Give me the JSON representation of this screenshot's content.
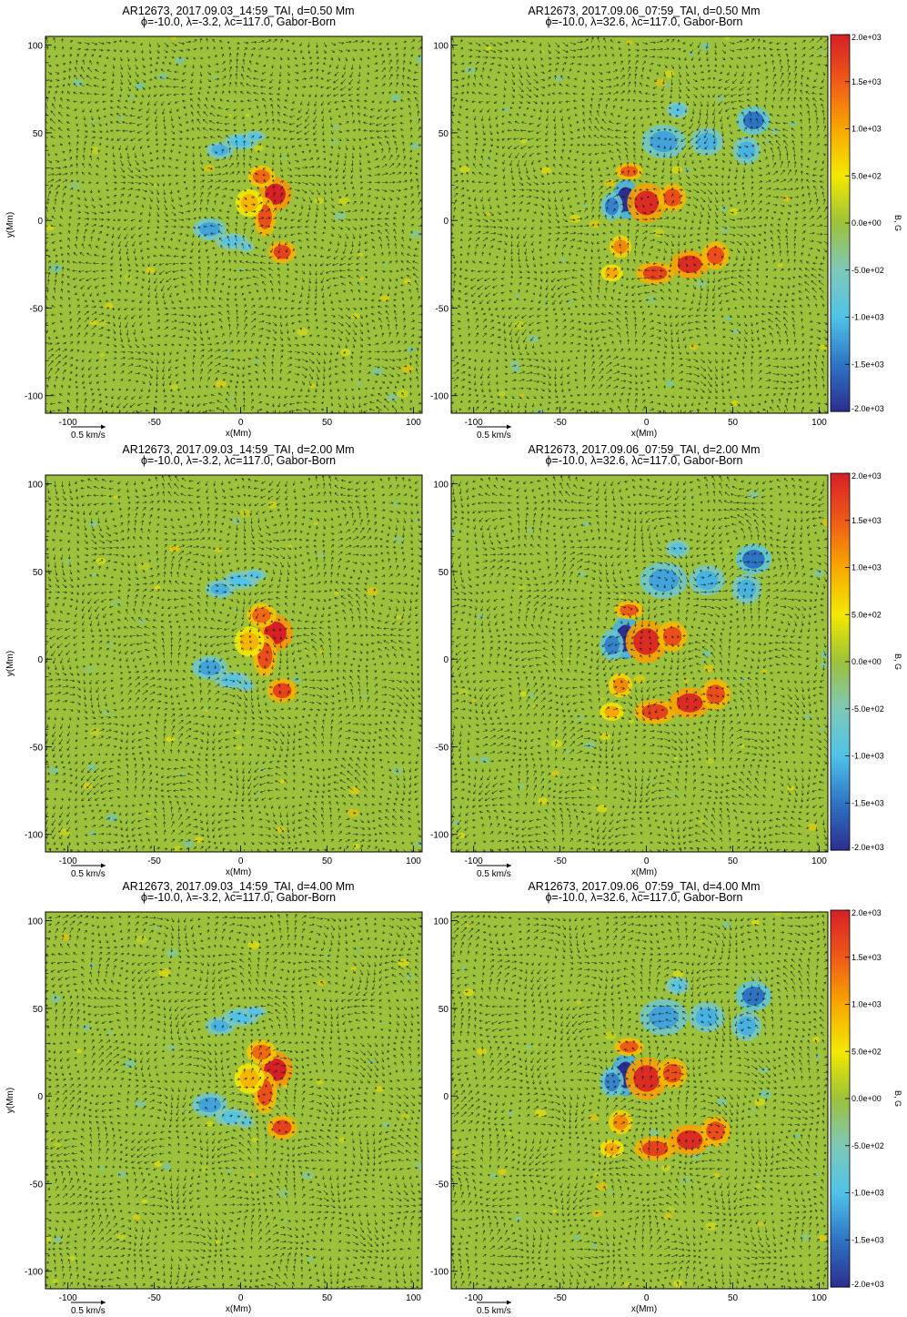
{
  "chart_data": {
    "type": "heatmap",
    "description_units": {
      "x": "Mm",
      "y": "Mm",
      "color": "G",
      "arrows": "km/s"
    },
    "xlim": [
      -113,
      105
    ],
    "ylim": [
      -110,
      105
    ],
    "xticks": [
      -100,
      -50,
      0,
      50,
      100
    ],
    "yticks": [
      -100,
      -50,
      0,
      50,
      100
    ],
    "x_tick_labels": [
      "-100",
      "-50",
      "0",
      "50",
      "100"
    ],
    "y_tick_labels": [
      "-100",
      "-50",
      "0",
      "50",
      "100"
    ],
    "xlabel": "x(Mm)",
    "ylabel": "y(Mm)",
    "vector_scale_label": "0.5 km/s",
    "colorbar": {
      "label": "B, G",
      "range": [
        -2000,
        2000
      ],
      "tick_values": [
        2000,
        1500,
        1000,
        500,
        0,
        -500,
        -1000,
        -1500,
        -2000
      ],
      "tick_labels": [
        "2.0e+03",
        "1.5e+03",
        "1.0e+03",
        "5.0e+02",
        "0.0e+00",
        "-5.0e+02",
        "-1.0e+03",
        "-1.5e+03",
        "-2.0e+03"
      ],
      "colors": [
        "#2b2f8f",
        "#2e74c4",
        "#4fc3e8",
        "#7fc8b8",
        "#9bc23a",
        "#f4e800",
        "#f7a800",
        "#ee5a18",
        "#d62026"
      ]
    },
    "grid": false,
    "panels": [
      {
        "title1": "AR12673, 2017.09.03_14:59_TAI, d=0.50 Mm",
        "title2": "ϕ=-10.0, λ=-3.2, λc=117.0, Gabor-Born",
        "date": "2017.09.03",
        "depth_Mm": 0.5,
        "lambda": -3.2
      },
      {
        "title1": "AR12673, 2017.09.06_07:59_TAI, d=0.50 Mm",
        "title2": "ϕ=-10.0, λ=32.6, λc=117.0, Gabor-Born",
        "date": "2017.09.06",
        "depth_Mm": 0.5,
        "lambda": 32.6
      },
      {
        "title1": "AR12673, 2017.09.03_14:59_TAI, d=2.00 Mm",
        "title2": "ϕ=-10.0, λ=-3.2, λc=117.0, Gabor-Born",
        "date": "2017.09.03",
        "depth_Mm": 2.0,
        "lambda": -3.2
      },
      {
        "title1": "AR12673, 2017.09.06_07:59_TAI, d=2.00 Mm",
        "title2": "ϕ=-10.0, λ=32.6, λc=117.0, Gabor-Born",
        "date": "2017.09.06",
        "depth_Mm": 2.0,
        "lambda": 32.6
      },
      {
        "title1": "AR12673, 2017.09.03_14:59_TAI, d=4.00 Mm",
        "title2": "ϕ=-10.0, λ=-3.2, λc=117.0, Gabor-Born",
        "date": "2017.09.03",
        "depth_Mm": 4.0,
        "lambda": -3.2
      },
      {
        "title1": "AR12673, 2017.09.06_07:59_TAI, d=4.00 Mm",
        "title2": "ϕ=-10.0, λ=32.6, λc=117.0, Gabor-Born",
        "date": "2017.09.06",
        "depth_Mm": 4.0,
        "lambda": 32.6
      }
    ],
    "magnetic_features": {
      "2017.09.03": [
        {
          "x": 20,
          "y": 15,
          "B": 2000,
          "rx": 6,
          "ry": 6
        },
        {
          "x": 12,
          "y": 25,
          "B": 1400,
          "rx": 5,
          "ry": 4
        },
        {
          "x": 14,
          "y": 2,
          "B": 1600,
          "rx": 4,
          "ry": 7
        },
        {
          "x": 24,
          "y": -18,
          "B": 1700,
          "rx": 5,
          "ry": 4
        },
        {
          "x": 5,
          "y": 10,
          "B": 900,
          "rx": 5,
          "ry": 5
        },
        {
          "x": -12,
          "y": 40,
          "B": -1100,
          "rx": 5,
          "ry": 3
        },
        {
          "x": 0,
          "y": 45,
          "B": -1000,
          "rx": 6,
          "ry": 3
        },
        {
          "x": 8,
          "y": 48,
          "B": -900,
          "rx": 4,
          "ry": 2
        },
        {
          "x": -18,
          "y": -5,
          "B": -1200,
          "rx": 6,
          "ry": 4
        },
        {
          "x": -5,
          "y": -12,
          "B": -900,
          "rx": 6,
          "ry": 3
        },
        {
          "x": 3,
          "y": -15,
          "B": -800,
          "rx": 3,
          "ry": 2
        }
      ],
      "2017.09.06": [
        {
          "x": -12,
          "y": 12,
          "B": -2000,
          "rx": 5,
          "ry": 7
        },
        {
          "x": -20,
          "y": 8,
          "B": -1400,
          "rx": 4,
          "ry": 5
        },
        {
          "x": 0,
          "y": 10,
          "B": 1900,
          "rx": 7,
          "ry": 7
        },
        {
          "x": 15,
          "y": 13,
          "B": 1600,
          "rx": 5,
          "ry": 5
        },
        {
          "x": -10,
          "y": 28,
          "B": 1500,
          "rx": 5,
          "ry": 3
        },
        {
          "x": 5,
          "y": -30,
          "B": 1700,
          "rx": 7,
          "ry": 4
        },
        {
          "x": 25,
          "y": -25,
          "B": 1900,
          "rx": 7,
          "ry": 5
        },
        {
          "x": 40,
          "y": -20,
          "B": 1600,
          "rx": 5,
          "ry": 5
        },
        {
          "x": -15,
          "y": -15,
          "B": 1200,
          "rx": 4,
          "ry": 4
        },
        {
          "x": -20,
          "y": -30,
          "B": 1000,
          "rx": 4,
          "ry": 3
        },
        {
          "x": 10,
          "y": 45,
          "B": -1200,
          "rx": 8,
          "ry": 6
        },
        {
          "x": 35,
          "y": 45,
          "B": -1100,
          "rx": 6,
          "ry": 5
        },
        {
          "x": 62,
          "y": 57,
          "B": -1500,
          "rx": 6,
          "ry": 5
        },
        {
          "x": 58,
          "y": 40,
          "B": -1100,
          "rx": 5,
          "ry": 5
        },
        {
          "x": 18,
          "y": 63,
          "B": -900,
          "rx": 4,
          "ry": 3
        }
      ]
    }
  }
}
